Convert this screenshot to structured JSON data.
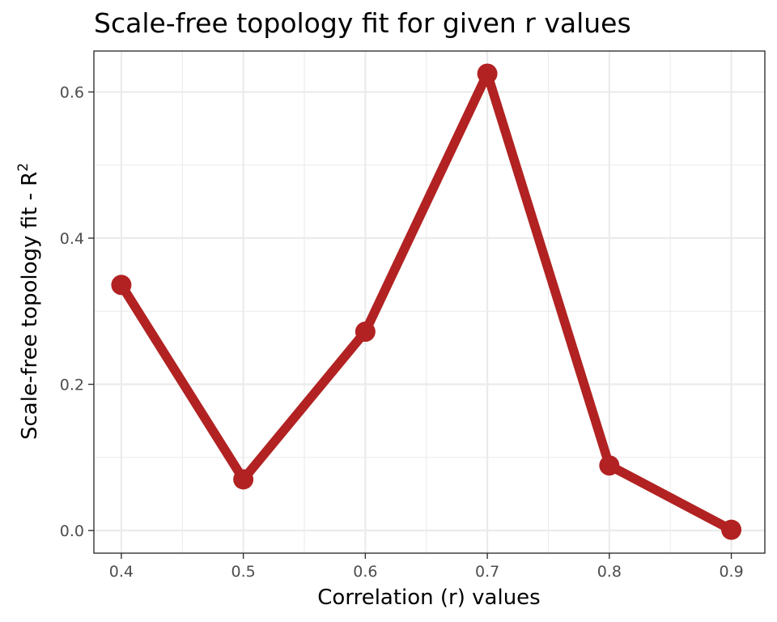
{
  "chart_data": {
    "type": "line",
    "title": "Scale-free topology fit for given r values",
    "xlabel": "Correlation (r) values",
    "ylabel_main": "Scale-free topology fit - R",
    "ylabel_superscript": "2",
    "x": [
      0.4,
      0.5,
      0.6,
      0.7,
      0.8,
      0.9
    ],
    "y": [
      0.336,
      0.07,
      0.272,
      0.625,
      0.089,
      0.001
    ],
    "xlim": [
      0.3775,
      0.9275
    ],
    "ylim": [
      -0.031,
      0.656
    ],
    "x_ticks": [
      0.4,
      0.5,
      0.6,
      0.7,
      0.8,
      0.9
    ],
    "x_tick_labels": [
      "0.4",
      "0.5",
      "0.6",
      "0.7",
      "0.8",
      "0.9"
    ],
    "y_ticks": [
      0.0,
      0.2,
      0.4,
      0.6
    ],
    "y_tick_labels": [
      "0.0",
      "0.2",
      "0.4",
      "0.6"
    ],
    "grid": true,
    "line_color": "#b22222",
    "legend": "none"
  }
}
